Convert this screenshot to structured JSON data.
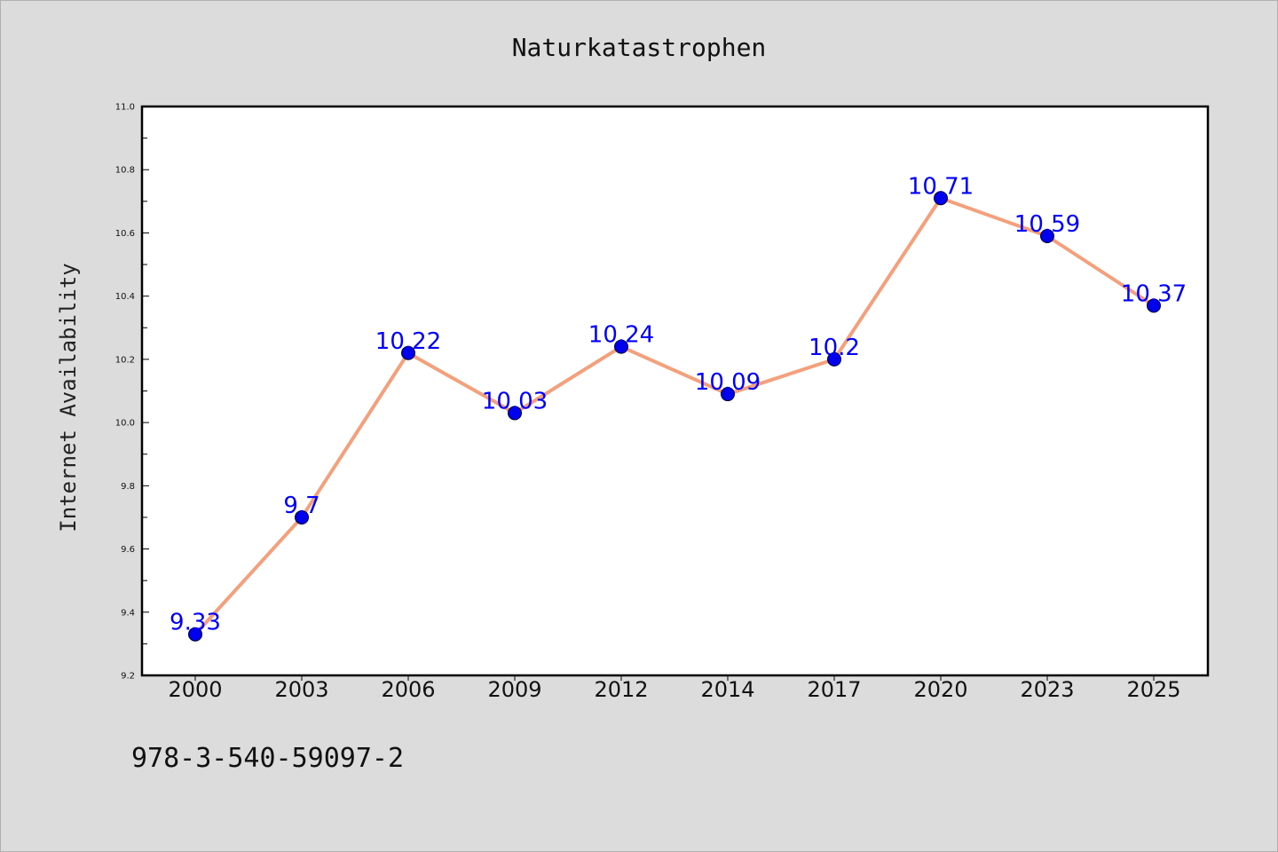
{
  "chart_data": {
    "type": "line",
    "title": "Naturkatastrophen",
    "xlabel": "",
    "ylabel": "Internet Availability",
    "categories": [
      "2000",
      "2003",
      "2006",
      "2009",
      "2012",
      "2014",
      "2017",
      "2020",
      "2023",
      "2025"
    ],
    "series": [
      {
        "values": [
          9.33,
          9.7,
          10.22,
          10.03,
          10.24,
          10.09,
          10.2,
          10.71,
          10.59,
          10.37
        ],
        "data_labels": [
          "9.33",
          "9.7",
          "10.22",
          "10.03",
          "10.24",
          "10.09",
          "10.2",
          "10.71",
          "10.59",
          "10.37"
        ]
      }
    ],
    "ylim": [
      9.2,
      11.0
    ],
    "yticks": [
      "9.2",
      "9.4",
      "9.6",
      "9.8",
      "10.0",
      "10.2",
      "10.4",
      "10.6",
      "10.8",
      "11.0"
    ],
    "grid": false,
    "line_color": "#f4a07c",
    "marker_color": "#0000ee",
    "label_color": "#0000ff"
  },
  "footer_text": "978-3-540-59097-2"
}
